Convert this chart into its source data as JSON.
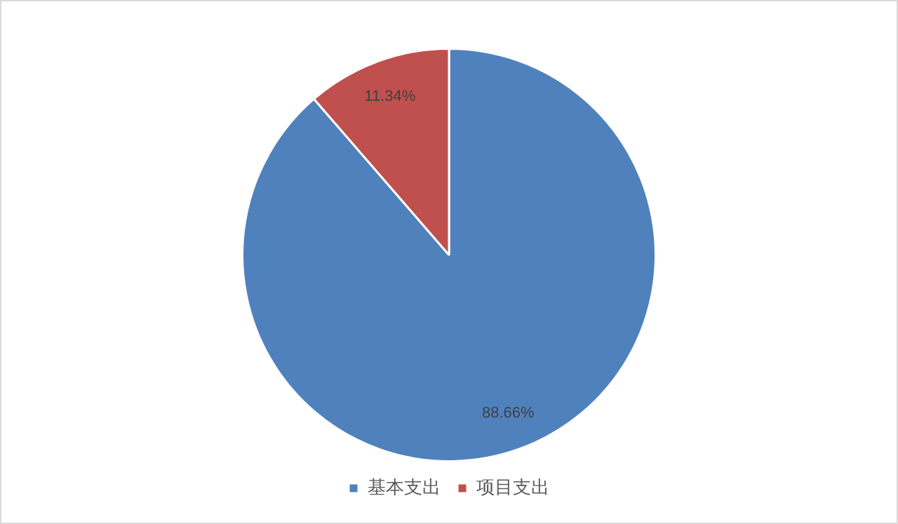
{
  "chart_data": {
    "type": "pie",
    "categories": [
      "基本支出",
      "项目支出"
    ],
    "values": [
      88.66,
      11.34
    ],
    "colors": [
      "#4f81bd",
      "#c0504d"
    ],
    "value_labels": [
      "88.66%",
      "11.34%"
    ],
    "legend": "bottom"
  }
}
